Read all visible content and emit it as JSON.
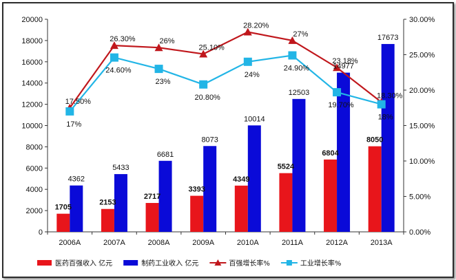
{
  "chart_data": {
    "type": "bar",
    "categories": [
      "2006A",
      "2007A",
      "2008A",
      "2009A",
      "2010A",
      "2011A",
      "2012A",
      "2013A"
    ],
    "series": [
      {
        "name": "医药百强收入 亿元",
        "kind": "bar",
        "axis": "left",
        "color": "#e8151b",
        "values": [
          1705,
          2153,
          2717,
          3393,
          4349,
          5524,
          6804,
          8050
        ],
        "labels": [
          "1705",
          "2153",
          "2717",
          "3393",
          "4349",
          "5524",
          "6804",
          "8050"
        ]
      },
      {
        "name": "制药工业收入 亿元",
        "kind": "bar",
        "axis": "left",
        "color": "#0a0ad8",
        "values": [
          4362,
          5433,
          6681,
          8073,
          10014,
          12503,
          14977,
          17673
        ],
        "labels": [
          "4362",
          "5433",
          "6681",
          "8073",
          "10014",
          "12503",
          "14977",
          "17673"
        ]
      },
      {
        "name": "百强增长率%",
        "kind": "line",
        "axis": "right",
        "color": "#c0171c",
        "marker": "triangle",
        "values": [
          17.5,
          26.3,
          26.0,
          25.1,
          28.2,
          27.0,
          23.18,
          18.3
        ],
        "labels": [
          "17.50%",
          "26.30%",
          "26%",
          "25.10%",
          "28.20%",
          "27%",
          "23.18%",
          "18.30%"
        ]
      },
      {
        "name": "工业增长率%",
        "kind": "line",
        "axis": "right",
        "color": "#22b5e6",
        "marker": "square",
        "values": [
          17.0,
          24.6,
          23.0,
          20.8,
          24.0,
          24.9,
          19.7,
          18.0
        ],
        "labels": [
          "17%",
          "24.60%",
          "23%",
          "20.80%",
          "24%",
          "24.90%",
          "19.70%",
          "18%"
        ]
      }
    ],
    "y_left": {
      "min": 0,
      "max": 20000,
      "step": 2000,
      "ticks": [
        "0",
        "2000",
        "4000",
        "6000",
        "8000",
        "10000",
        "12000",
        "14000",
        "16000",
        "18000",
        "20000"
      ]
    },
    "y_right": {
      "min": 0,
      "max": 30,
      "step": 5,
      "ticks": [
        "0.00%",
        "5.00%",
        "10.00%",
        "15.00%",
        "20.00%",
        "25.00%",
        "30.00%"
      ]
    },
    "title": "",
    "xlabel": "",
    "ylabel": "",
    "grid": false,
    "legend_position": "bottom"
  }
}
